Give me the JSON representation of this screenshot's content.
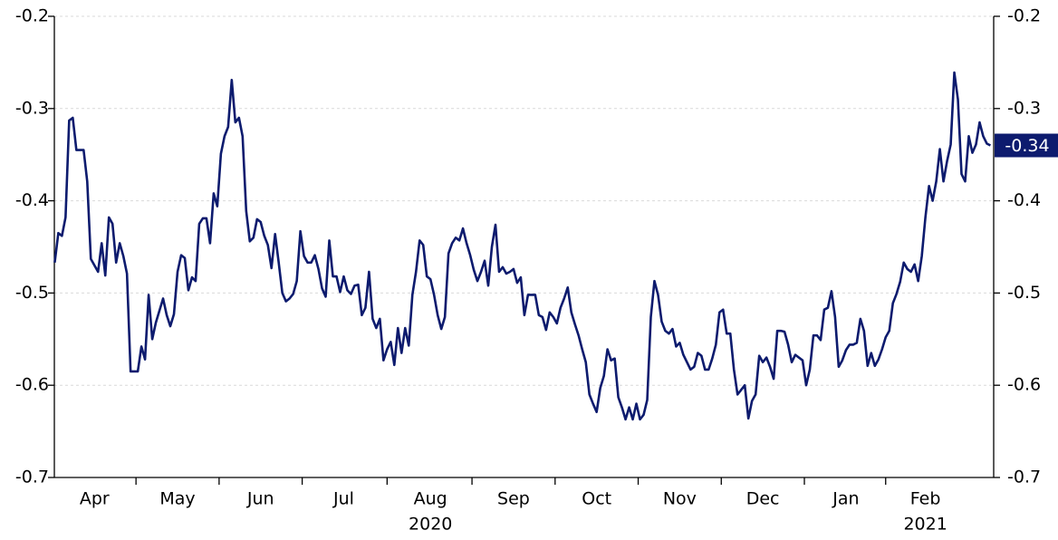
{
  "chart_data": {
    "type": "line",
    "categories": [
      null,
      null,
      null,
      null,
      null,
      null,
      null,
      null,
      null,
      null,
      null,
      "Apr",
      null,
      null,
      null,
      null,
      null,
      null,
      null,
      null,
      null,
      null,
      null,
      null,
      null,
      null,
      null,
      null,
      null,
      null,
      null,
      null,
      null,
      null,
      "May",
      null,
      null,
      null,
      null,
      null,
      null,
      null,
      null,
      null,
      null,
      null,
      null,
      null,
      null,
      null,
      null,
      null,
      null,
      null,
      null,
      null,
      null,
      "Jun",
      null,
      null,
      null,
      null,
      null,
      null,
      null,
      null,
      null,
      null,
      null,
      null,
      null,
      null,
      null,
      null,
      null,
      null,
      null,
      null,
      null,
      null,
      "Jul",
      null,
      null,
      null,
      null,
      null,
      null,
      null,
      null,
      null,
      null,
      null,
      null,
      null,
      null,
      null,
      null,
      null,
      null,
      null,
      null,
      null,
      null,
      null,
      "Aug",
      null,
      null,
      null,
      null,
      null,
      null,
      null,
      null,
      null,
      null,
      null,
      null,
      null,
      null,
      null,
      null,
      null,
      null,
      null,
      null,
      null,
      null,
      "Sep",
      null,
      null,
      null,
      null,
      null,
      null,
      null,
      null,
      null,
      null,
      null,
      null,
      null,
      null,
      null,
      null,
      null,
      null,
      null,
      null,
      null,
      null,
      "Oct",
      null,
      null,
      null,
      null,
      null,
      null,
      null,
      null,
      null,
      null,
      null,
      null,
      null,
      null,
      null,
      null,
      null,
      null,
      null,
      null,
      null,
      null,
      "Nov",
      null,
      null,
      null,
      null,
      null,
      null,
      null,
      null,
      null,
      null,
      null,
      null,
      null,
      null,
      null,
      null,
      null,
      null,
      null,
      null,
      null,
      null,
      "Dec",
      null,
      null,
      null,
      null,
      null,
      null,
      null,
      null,
      null,
      null,
      null,
      null,
      null,
      null,
      null,
      null,
      null,
      null,
      null,
      null,
      null,
      null,
      "Jan",
      null,
      null,
      null,
      null,
      null,
      null,
      null,
      null,
      null,
      null,
      null,
      null,
      null,
      null,
      null,
      null,
      null,
      null,
      null,
      null,
      null,
      "Feb",
      null,
      null,
      null,
      null,
      null,
      null,
      null,
      null,
      null,
      null,
      null,
      null,
      null,
      null,
      null,
      null,
      null,
      null
    ],
    "year_labels": [
      "2020",
      "2021"
    ],
    "series": [
      {
        "color": "#0d1b6e",
        "values": [
          -0.467,
          -0.435,
          -0.438,
          -0.418,
          -0.313,
          -0.31,
          -0.345,
          -0.345,
          -0.345,
          -0.379,
          -0.463,
          -0.47,
          -0.477,
          -0.446,
          -0.481,
          -0.418,
          -0.425,
          -0.467,
          -0.446,
          -0.46,
          -0.479,
          -0.585,
          -0.585,
          -0.585,
          -0.558,
          -0.572,
          -0.502,
          -0.55,
          -0.532,
          -0.519,
          -0.506,
          -0.524,
          -0.536,
          -0.523,
          -0.477,
          -0.459,
          -0.462,
          -0.497,
          -0.483,
          -0.487,
          -0.425,
          -0.419,
          -0.419,
          -0.446,
          -0.392,
          -0.406,
          -0.349,
          -0.33,
          -0.32,
          -0.269,
          -0.315,
          -0.31,
          -0.33,
          -0.411,
          -0.444,
          -0.44,
          -0.42,
          -0.423,
          -0.438,
          -0.448,
          -0.473,
          -0.436,
          -0.467,
          -0.5,
          -0.509,
          -0.506,
          -0.501,
          -0.487,
          -0.433,
          -0.46,
          -0.467,
          -0.467,
          -0.459,
          -0.474,
          -0.495,
          -0.504,
          -0.443,
          -0.482,
          -0.482,
          -0.499,
          -0.482,
          -0.497,
          -0.501,
          -0.492,
          -0.491,
          -0.524,
          -0.516,
          -0.477,
          -0.528,
          -0.538,
          -0.528,
          -0.573,
          -0.561,
          -0.553,
          -0.578,
          -0.538,
          -0.565,
          -0.538,
          -0.557,
          -0.502,
          -0.477,
          -0.443,
          -0.448,
          -0.482,
          -0.485,
          -0.502,
          -0.524,
          -0.539,
          -0.526,
          -0.457,
          -0.446,
          -0.44,
          -0.443,
          -0.43,
          -0.446,
          -0.459,
          -0.475,
          -0.487,
          -0.477,
          -0.465,
          -0.492,
          -0.45,
          -0.426,
          -0.477,
          -0.472,
          -0.479,
          -0.477,
          -0.474,
          -0.489,
          -0.483,
          -0.524,
          -0.502,
          -0.502,
          -0.502,
          -0.524,
          -0.526,
          -0.54,
          -0.521,
          -0.526,
          -0.533,
          -0.516,
          -0.506,
          -0.494,
          -0.521,
          -0.534,
          -0.546,
          -0.561,
          -0.575,
          -0.61,
          -0.62,
          -0.629,
          -0.603,
          -0.59,
          -0.561,
          -0.573,
          -0.571,
          -0.613,
          -0.624,
          -0.637,
          -0.624,
          -0.637,
          -0.62,
          -0.637,
          -0.632,
          -0.616,
          -0.526,
          -0.487,
          -0.502,
          -0.531,
          -0.541,
          -0.544,
          -0.539,
          -0.558,
          -0.554,
          -0.567,
          -0.575,
          -0.583,
          -0.58,
          -0.565,
          -0.568,
          -0.583,
          -0.583,
          -0.571,
          -0.556,
          -0.521,
          -0.518,
          -0.544,
          -0.544,
          -0.583,
          -0.61,
          -0.605,
          -0.6,
          -0.636,
          -0.617,
          -0.61,
          -0.568,
          -0.575,
          -0.57,
          -0.58,
          -0.593,
          -0.541,
          -0.541,
          -0.542,
          -0.556,
          -0.575,
          -0.567,
          -0.57,
          -0.573,
          -0.6,
          -0.583,
          -0.546,
          -0.546,
          -0.551,
          -0.518,
          -0.516,
          -0.498,
          -0.526,
          -0.58,
          -0.573,
          -0.562,
          -0.556,
          -0.556,
          -0.554,
          -0.528,
          -0.541,
          -0.579,
          -0.565,
          -0.579,
          -0.572,
          -0.561,
          -0.548,
          -0.541,
          -0.511,
          -0.501,
          -0.488,
          -0.467,
          -0.474,
          -0.477,
          -0.469,
          -0.487,
          -0.46,
          -0.418,
          -0.384,
          -0.4,
          -0.379,
          -0.344,
          -0.379,
          -0.357,
          -0.339,
          -0.261,
          -0.29,
          -0.371,
          -0.379,
          -0.33,
          -0.348,
          -0.339,
          -0.315,
          -0.33,
          -0.338,
          -0.34
        ]
      }
    ],
    "last_value_label": "-0.34",
    "ylim": [
      -0.7,
      -0.2
    ],
    "yticks": [
      -0.7,
      -0.6,
      -0.5,
      -0.4,
      -0.3,
      -0.2
    ],
    "y2lim": [
      -0.7,
      -0.2
    ],
    "y2ticks": [
      -0.7,
      -0.6,
      -0.5,
      -0.4,
      -0.3,
      -0.2
    ],
    "grid": true
  }
}
